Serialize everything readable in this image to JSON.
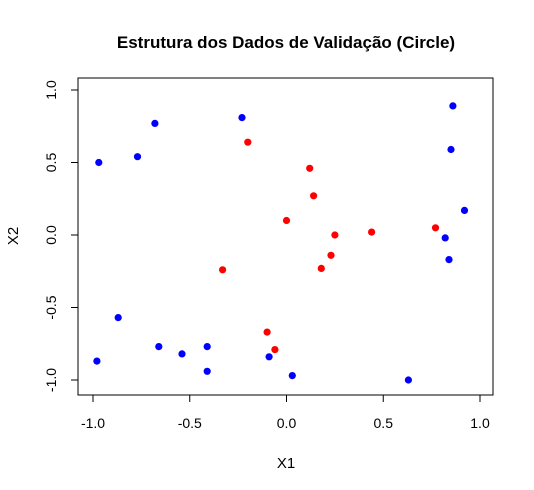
{
  "chart_data": {
    "type": "scatter",
    "title": "Estrutura dos Dados de Validação (Circle)",
    "xlabel": "X1",
    "ylabel": "X2",
    "xlim": [
      -1.0,
      1.0
    ],
    "ylim": [
      -1.0,
      1.0
    ],
    "x_ticks": [
      "-1.0",
      "-0.5",
      "0.0",
      "0.5",
      "1.0"
    ],
    "y_ticks": [
      "-1.0",
      "-0.5",
      "0.0",
      "0.5",
      "1.0"
    ],
    "grid": false,
    "legend": "none",
    "series": [
      {
        "color": "#0000ff",
        "points": [
          [
            -0.97,
            0.5
          ],
          [
            -0.77,
            0.54
          ],
          [
            -0.68,
            0.77
          ],
          [
            -0.23,
            0.81
          ],
          [
            0.86,
            0.89
          ],
          [
            0.85,
            0.59
          ],
          [
            0.92,
            0.17
          ],
          [
            0.82,
            -0.02
          ],
          [
            0.84,
            -0.17
          ],
          [
            -0.87,
            -0.57
          ],
          [
            -0.98,
            -0.87
          ],
          [
            -0.66,
            -0.77
          ],
          [
            -0.54,
            -0.82
          ],
          [
            -0.41,
            -0.77
          ],
          [
            -0.41,
            -0.94
          ],
          [
            -0.09,
            -0.84
          ],
          [
            0.03,
            -0.97
          ],
          [
            0.63,
            -1.0
          ]
        ]
      },
      {
        "color": "#ff0000",
        "points": [
          [
            -0.2,
            0.64
          ],
          [
            0.12,
            0.46
          ],
          [
            0.14,
            0.27
          ],
          [
            0.0,
            0.1
          ],
          [
            0.25,
            0.0
          ],
          [
            0.23,
            -0.14
          ],
          [
            0.18,
            -0.23
          ],
          [
            -0.33,
            -0.24
          ],
          [
            0.44,
            0.02
          ],
          [
            0.77,
            0.05
          ],
          [
            -0.1,
            -0.67
          ],
          [
            -0.06,
            -0.79
          ]
        ]
      }
    ]
  }
}
